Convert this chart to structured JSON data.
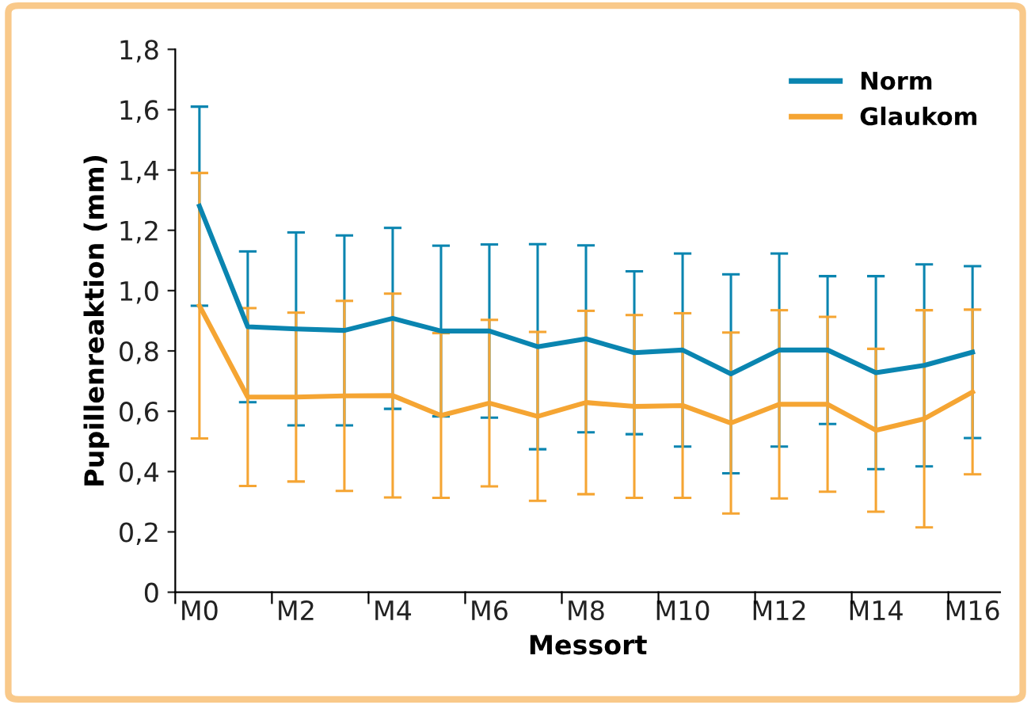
{
  "chart_data": {
    "type": "line",
    "xlabel": "Messort",
    "ylabel": "Pupillenreaktion (mm)",
    "categories": [
      "M0",
      null,
      "M2",
      null,
      "M4",
      null,
      "M6",
      null,
      "M8",
      null,
      "M10",
      null,
      "M12",
      null,
      "M14",
      null,
      "M16"
    ],
    "ylim": [
      0,
      1.8
    ],
    "yticks": [
      {
        "value": 0,
        "label": "0"
      },
      {
        "value": 0.2,
        "label": "0,2"
      },
      {
        "value": 0.4,
        "label": "0,4"
      },
      {
        "value": 0.6,
        "label": "0,6"
      },
      {
        "value": 0.8,
        "label": "0,8"
      },
      {
        "value": 1.0,
        "label": "1,0"
      },
      {
        "value": 1.2,
        "label": "1,2"
      },
      {
        "value": 1.4,
        "label": "1,4"
      },
      {
        "value": 1.6,
        "label": "1,6"
      },
      {
        "value": 1.8,
        "label": "1,8"
      }
    ],
    "series": [
      {
        "name": "Norm",
        "color": "#0a85b0",
        "values": [
          1.28,
          0.88,
          0.873,
          0.868,
          0.908,
          0.866,
          0.866,
          0.814,
          0.84,
          0.794,
          0.803,
          0.724,
          0.803,
          0.803,
          0.728,
          0.752,
          0.796
        ],
        "errors": [
          0.33,
          0.25,
          0.32,
          0.315,
          0.3,
          0.283,
          0.287,
          0.34,
          0.31,
          0.27,
          0.32,
          0.33,
          0.32,
          0.245,
          0.32,
          0.335,
          0.285
        ]
      },
      {
        "name": "Glaukom",
        "color": "#f5a533",
        "values": [
          0.95,
          0.647,
          0.647,
          0.651,
          0.652,
          0.586,
          0.627,
          0.583,
          0.629,
          0.616,
          0.619,
          0.561,
          0.623,
          0.623,
          0.537,
          0.575,
          0.664
        ],
        "errors": [
          0.44,
          0.295,
          0.28,
          0.315,
          0.338,
          0.273,
          0.276,
          0.28,
          0.304,
          0.303,
          0.306,
          0.3,
          0.312,
          0.29,
          0.27,
          0.36,
          0.273
        ]
      }
    ],
    "grid": false,
    "legend": "top right",
    "marker": "none",
    "line_style": "solid"
  }
}
